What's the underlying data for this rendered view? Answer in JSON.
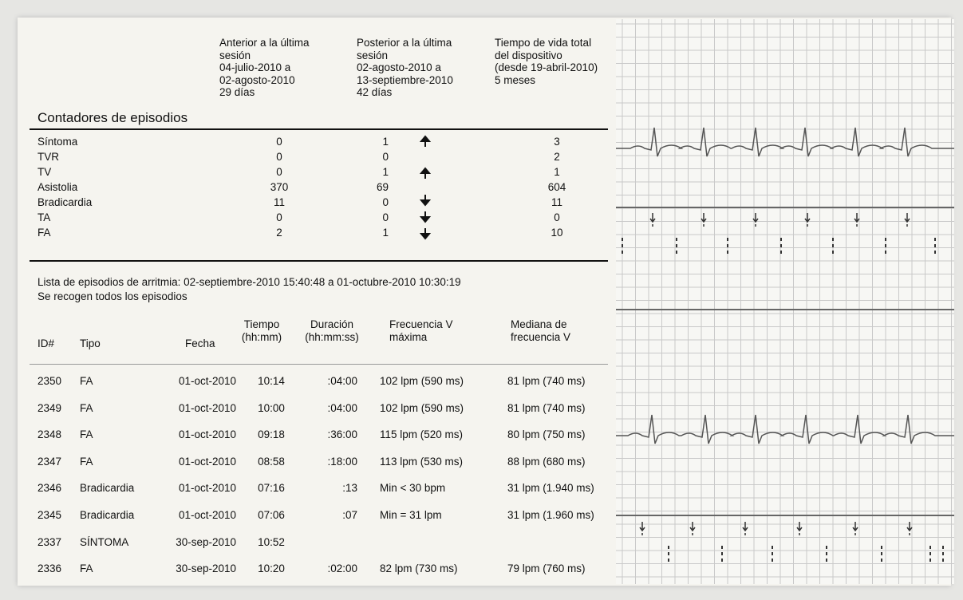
{
  "counters": {
    "title": "Contadores de episodios",
    "headers": [
      [
        "Anterior a la última",
        "sesión",
        "04-julio-2010 a",
        "02-agosto-2010",
        "29 días"
      ],
      [
        "Posterior a la última",
        "sesión",
        "02-agosto-2010 a",
        "13-septiembre-2010",
        "42 días"
      ],
      [
        "Tiempo de vida total",
        "del dispositivo",
        "(desde 19-abril-2010)",
        "5 meses"
      ]
    ],
    "rows": [
      [
        "Síntoma",
        "0",
        "1",
        "3"
      ],
      [
        "TVR",
        "0",
        "0",
        "2"
      ],
      [
        "TV",
        "0",
        "1",
        "1"
      ],
      [
        "Asistolia",
        "370",
        "69",
        "604"
      ],
      [
        "Bradicardia",
        "11",
        "0",
        "11"
      ],
      [
        "TA",
        "0",
        "0",
        "0"
      ],
      [
        "FA",
        "2",
        "1",
        "10"
      ]
    ]
  },
  "episodes": {
    "title": "Lista de episodios de arritmia: 02-septiembre-2010 15:40:48 a 01-octubre-2010 10:30:19",
    "subtitle": "Se recogen todos los episodios",
    "headers": [
      [
        "ID#"
      ],
      [
        "Tipo"
      ],
      [
        "Fecha"
      ],
      [
        "Tiempo",
        "(hh:mm)"
      ],
      [
        "Duración",
        "(hh:mm:ss)"
      ],
      [
        "Frecuencia V",
        "máxima"
      ],
      [
        "Mediana de",
        "frecuencia V"
      ]
    ],
    "rows": [
      [
        "2350",
        "FA",
        "01-oct-2010",
        "10:14",
        ":04:00",
        "102 lpm (590 ms)",
        "81 lpm (740 ms)"
      ],
      [
        "2349",
        "FA",
        "01-oct-2010",
        "10:00",
        ":04:00",
        "102 lpm (590 ms)",
        "81 lpm (740 ms)"
      ],
      [
        "2348",
        "FA",
        "01-oct-2010",
        "09:18",
        ":36:00",
        "115 lpm (520 ms)",
        "80 lpm (750 ms)"
      ],
      [
        "2347",
        "FA",
        "01-oct-2010",
        "08:58",
        ":18:00",
        "113 lpm (530 ms)",
        "88 lpm (680 ms)"
      ],
      [
        "2346",
        "Bradicardia",
        "01-oct-2010",
        "07:16",
        ":13",
        "Min < 30 bpm",
        "31 lpm (1.940 ms)"
      ],
      [
        "2345",
        "Bradicardia",
        "01-oct-2010",
        "07:06",
        ":07",
        "Min = 31 lpm",
        "31 lpm (1.960 ms)"
      ],
      [
        "2337",
        "SÍNTOMA",
        "30-sep-2010",
        "10:52"
      ],
      [
        "2336",
        "FA",
        "30-sep-2010",
        "10:20",
        ":02:00",
        "82 lpm (730 ms)",
        "79 lpm (760 ms)"
      ]
    ]
  }
}
